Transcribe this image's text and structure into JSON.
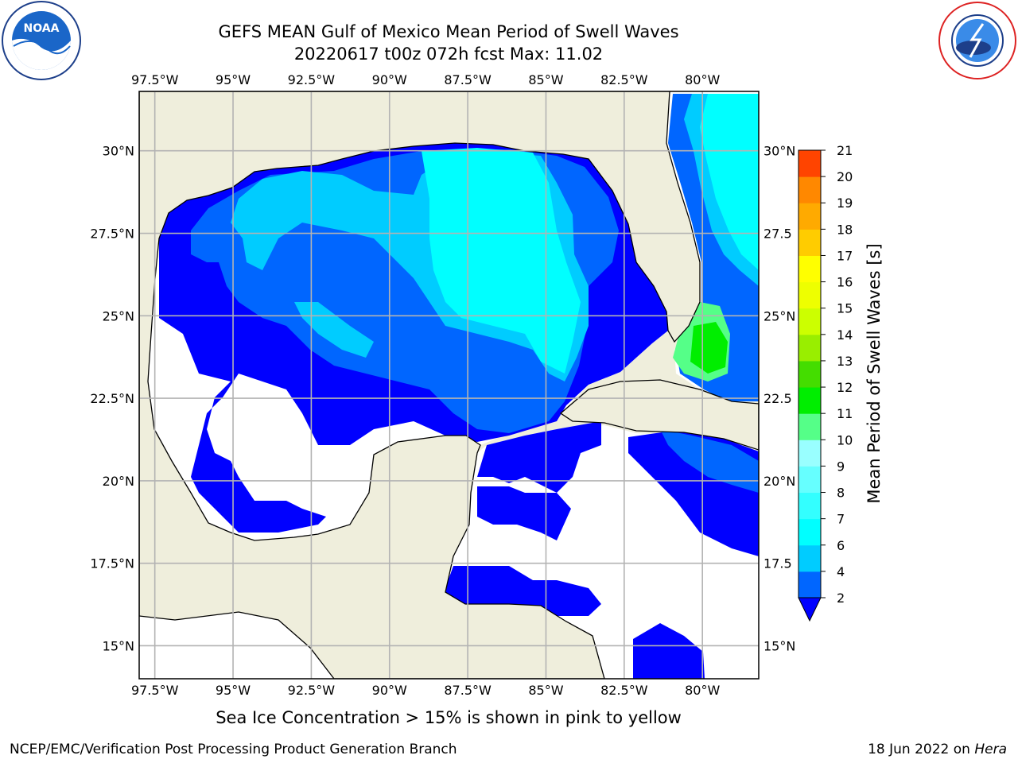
{
  "title": {
    "line1": "GEFS MEAN Gulf of Mexico Mean Period of Swell Waves",
    "line2": "20220617 t00z 072h fcst   Max: 11.02"
  },
  "map": {
    "lon_range": [
      -98,
      -78.2
    ],
    "lat_range": [
      14.0,
      31.8
    ],
    "lon_ticks": [
      {
        "value": -97.5,
        "label": "97.5°W"
      },
      {
        "value": -95,
        "label": "95°W"
      },
      {
        "value": -92.5,
        "label": "92.5°W"
      },
      {
        "value": -90,
        "label": "90°W"
      },
      {
        "value": -87.5,
        "label": "87.5°W"
      },
      {
        "value": -85,
        "label": "85°W"
      },
      {
        "value": -82.5,
        "label": "82.5°W"
      },
      {
        "value": -80,
        "label": "80°W"
      }
    ],
    "lat_ticks_left": [
      {
        "value": 30,
        "label": "30°N"
      },
      {
        "value": 27.5,
        "label": "27.5°N"
      },
      {
        "value": 25,
        "label": "25°N"
      },
      {
        "value": 22.5,
        "label": "22.5°N"
      },
      {
        "value": 20,
        "label": "20°N"
      },
      {
        "value": 17.5,
        "label": "17.5°N"
      },
      {
        "value": 15,
        "label": "15°N"
      }
    ],
    "lat_ticks_right": [
      {
        "value": 30,
        "label": "30°N"
      },
      {
        "value": 27.5,
        "label": "27.5"
      },
      {
        "value": 25,
        "label": "25°N"
      },
      {
        "value": 22.5,
        "label": "22.5"
      },
      {
        "value": 20,
        "label": "20°N"
      },
      {
        "value": 17.5,
        "label": "17.5"
      },
      {
        "value": 15,
        "label": "15°N"
      }
    ],
    "gridlines": true,
    "land_color": "#efeedc",
    "ocean_nodata_color": "#ffffff"
  },
  "colorbar": {
    "label": "Mean Period of Swell Waves [s]",
    "ticks": [
      "2",
      "4",
      "6",
      "7",
      "8",
      "9",
      "10",
      "11",
      "12",
      "13",
      "14",
      "15",
      "16",
      "17",
      "18",
      "19",
      "20",
      "21"
    ],
    "colors": [
      "#0066ff",
      "#00ccff",
      "#00ffff",
      "#33ffff",
      "#66ffff",
      "#99ffff",
      "#55ff88",
      "#00ee00",
      "#44dd00",
      "#99ee00",
      "#ccff00",
      "#eeff00",
      "#ffff00",
      "#ffcc00",
      "#ffaa00",
      "#ff8800",
      "#ff4400",
      "#ff0000"
    ],
    "extend_color": "#0000ff"
  },
  "swell_colors": {
    "p2": "#0000ff",
    "p4": "#0066ff",
    "p6": "#00ccff",
    "p7": "#00ffff",
    "p9": "#55ff88",
    "p10": "#00ee00"
  },
  "note": "Sea Ice Concentration > 15% is shown in pink to yellow",
  "footer": {
    "left": "NCEP/EMC/Verification Post Processing Product Generation Branch",
    "date": "18 Jun 2022 on ",
    "host": "Hera"
  },
  "logos": {
    "noaa_icon": "noaa-logo",
    "noaa_text": "NOAA",
    "nws_icon": "nws-logo"
  }
}
